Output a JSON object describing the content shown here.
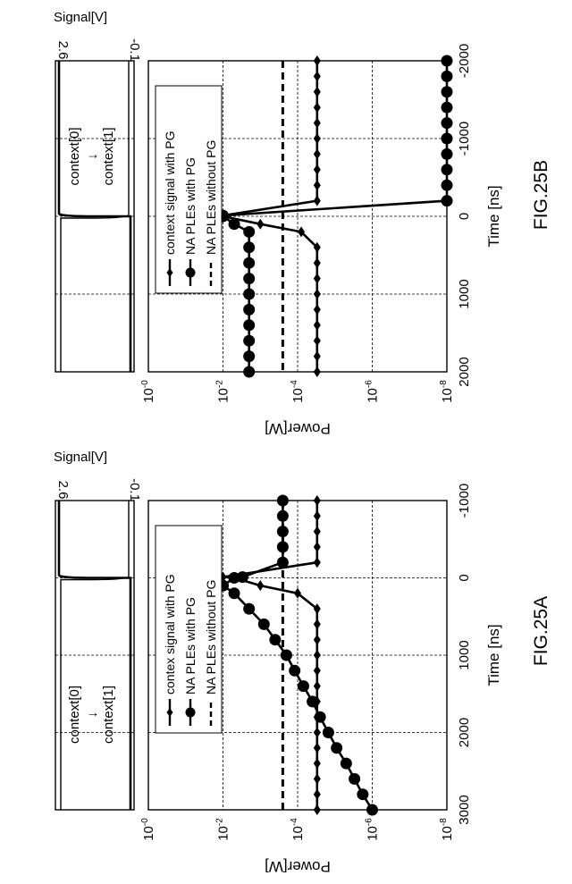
{
  "figures": [
    {
      "id": "fig25b",
      "label": "FIG.25B",
      "signal_panel": {
        "axis_label": "Signal[V]",
        "v_high": "2.6",
        "v_low": "-0.1",
        "text_top": "context[0]",
        "text_sep": "↓",
        "text_bottom": "context[1]"
      },
      "chart_data": {
        "type": "line",
        "x": [
          -2000,
          -1800,
          -1600,
          -1400,
          -1200,
          -1000,
          -800,
          -600,
          -400,
          -200,
          -10,
          0,
          100,
          200,
          400,
          600,
          800,
          1000,
          1200,
          1400,
          1600,
          1800,
          2000
        ],
        "series": [
          {
            "name": "context signal with PG",
            "marker": "diamond",
            "values": [
              3e-05,
              3e-05,
              3e-05,
              3e-05,
              3e-05,
              3e-05,
              3e-05,
              3e-05,
              3e-05,
              3e-05,
              0.01,
              0.01,
              0.001,
              8e-05,
              3e-05,
              3e-05,
              3e-05,
              3e-05,
              3e-05,
              3e-05,
              3e-05,
              3e-05,
              3e-05
            ]
          },
          {
            "name": "NA PLEs with PG",
            "marker": "circle",
            "values": [
              1e-08,
              1e-08,
              1e-08,
              1e-08,
              1e-08,
              1e-08,
              1e-08,
              1e-08,
              1e-08,
              1e-08,
              0.01,
              0.01,
              0.005,
              0.002,
              0.002,
              0.002,
              0.002,
              0.002,
              0.002,
              0.002,
              0.002,
              0.002,
              0.002
            ]
          },
          {
            "name": "NA PLEs without PG",
            "marker": "none",
            "dashed": true,
            "values": [
              0.00025,
              0.00025,
              0.00025,
              0.00025,
              0.00025,
              0.00025,
              0.00025,
              0.00025,
              0.00025,
              0.00025,
              0.00025,
              0.00025,
              0.00025,
              0.00025,
              0.00025,
              0.00025,
              0.00025,
              0.00025,
              0.00025,
              0.00025,
              0.00025,
              0.00025,
              0.00025
            ]
          }
        ],
        "xlabel": "Time [ns]",
        "ylabel": "Power[W]",
        "xlim": [
          -2000,
          2000
        ],
        "xticks": [
          "-2000",
          "-1000",
          "0",
          "1000",
          "2000"
        ],
        "ylim": [
          1e-08,
          1
        ],
        "yscale": "log",
        "yticks": [
          {
            "base": "10",
            "exp": "-0"
          },
          {
            "base": "10",
            "exp": "-2"
          },
          {
            "base": "10",
            "exp": "-4"
          },
          {
            "base": "10",
            "exp": "-6"
          },
          {
            "base": "10",
            "exp": "-8"
          }
        ],
        "grid": true,
        "legend_position": "top-left"
      }
    },
    {
      "id": "fig25a",
      "label": "FIG.25A",
      "signal_panel": {
        "axis_label": "Signal[V]",
        "v_high": "2.6",
        "v_low": "-0.1",
        "text_top": "context[0]",
        "text_sep": "↓",
        "text_bottom": "context[1]"
      },
      "chart_data": {
        "type": "line",
        "x": [
          -1000,
          -800,
          -600,
          -400,
          -200,
          -10,
          0,
          100,
          200,
          400,
          600,
          800,
          1000,
          1200,
          1400,
          1600,
          1800,
          2000,
          2200,
          2400,
          2600,
          2800,
          3000
        ],
        "series": [
          {
            "name": "contex signal with PG",
            "marker": "diamond",
            "values": [
              3e-05,
              3e-05,
              3e-05,
              3e-05,
              3e-05,
              0.01,
              0.005,
              0.001,
              0.0001,
              3e-05,
              3e-05,
              3e-05,
              3e-05,
              3e-05,
              3e-05,
              3e-05,
              3e-05,
              3e-05,
              3e-05,
              3e-05,
              3e-05,
              3e-05,
              3e-05
            ]
          },
          {
            "name": "NA PLEs with PG",
            "marker": "circle",
            "values": [
              0.00025,
              0.00025,
              0.00025,
              0.00025,
              0.00025,
              0.003,
              0.005,
              0.01,
              0.005,
              0.002,
              0.0008,
              0.0004,
              0.0002,
              0.00012,
              7e-05,
              4e-05,
              2.5e-05,
              1.5e-05,
              9e-06,
              5e-06,
              3e-06,
              1.8e-06,
              1e-06
            ]
          },
          {
            "name": "NA PLEs without PG",
            "marker": "none",
            "dashed": true,
            "values": [
              0.00025,
              0.00025,
              0.00025,
              0.00025,
              0.00025,
              0.00025,
              0.00025,
              0.00025,
              0.00025,
              0.00025,
              0.00025,
              0.00025,
              0.00025,
              0.00025,
              0.00025,
              0.00025,
              0.00025,
              0.00025,
              0.00025,
              0.00025,
              0.00025,
              0.00025,
              0.00025
            ]
          }
        ],
        "xlabel": "Time [ns]",
        "ylabel": "Power[W]",
        "xlim": [
          -1000,
          3000
        ],
        "xticks": [
          "-1000",
          "0",
          "1000",
          "2000",
          "3000"
        ],
        "ylim": [
          1e-08,
          1
        ],
        "yscale": "log",
        "yticks": [
          {
            "base": "10",
            "exp": "-0"
          },
          {
            "base": "10",
            "exp": "-2"
          },
          {
            "base": "10",
            "exp": "-4"
          },
          {
            "base": "10",
            "exp": "-6"
          },
          {
            "base": "10",
            "exp": "-8"
          }
        ],
        "grid": true,
        "legend_position": "top-left"
      }
    }
  ]
}
